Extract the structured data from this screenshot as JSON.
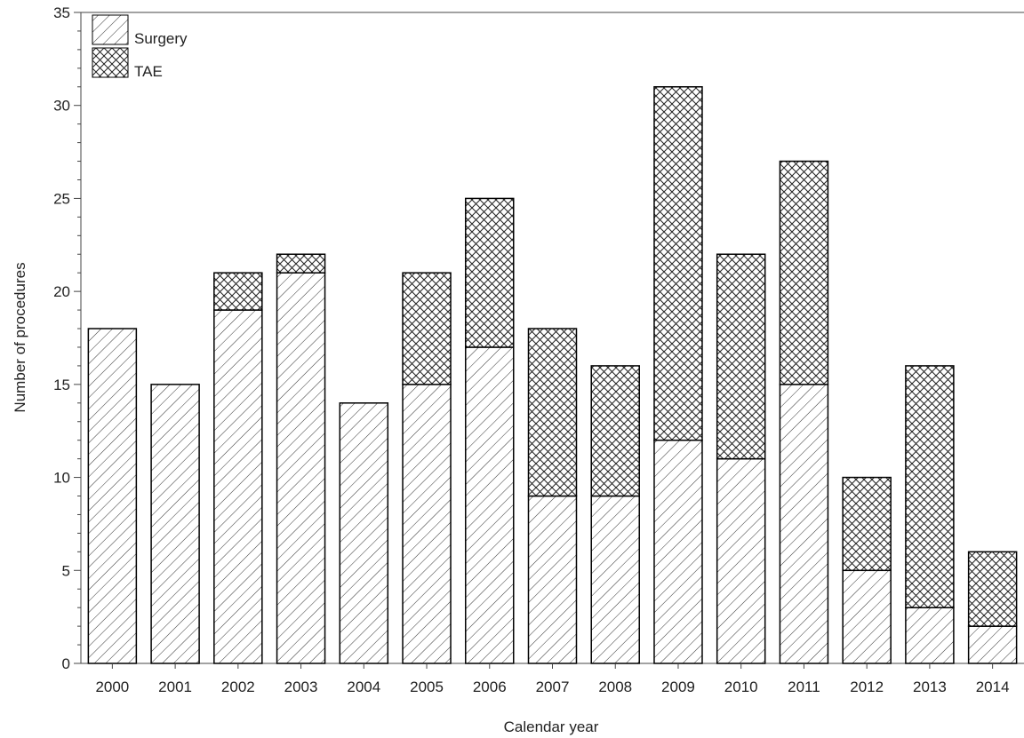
{
  "chart_data": {
    "type": "bar",
    "stacked": true,
    "categories": [
      "2000",
      "2001",
      "2002",
      "2003",
      "2004",
      "2005",
      "2006",
      "2007",
      "2008",
      "2009",
      "2010",
      "2011",
      "2012",
      "2013",
      "2014"
    ],
    "series": [
      {
        "name": "Surgery",
        "pattern": "diagonal-hatch",
        "values": [
          18,
          15,
          19,
          21,
          14,
          15,
          17,
          9,
          9,
          12,
          11,
          15,
          5,
          3,
          2
        ]
      },
      {
        "name": "TAE",
        "pattern": "cross-hatch",
        "values": [
          0,
          0,
          2,
          1,
          0,
          6,
          8,
          9,
          7,
          19,
          11,
          12,
          5,
          13,
          4
        ]
      }
    ],
    "xlabel": "Calendar year",
    "ylabel": "Number of procedures",
    "ylim": [
      0,
      35
    ],
    "yticks": [
      "0",
      "5",
      "10",
      "15",
      "20",
      "25",
      "30",
      "35"
    ],
    "legend_position": "top-left",
    "grid": false
  }
}
